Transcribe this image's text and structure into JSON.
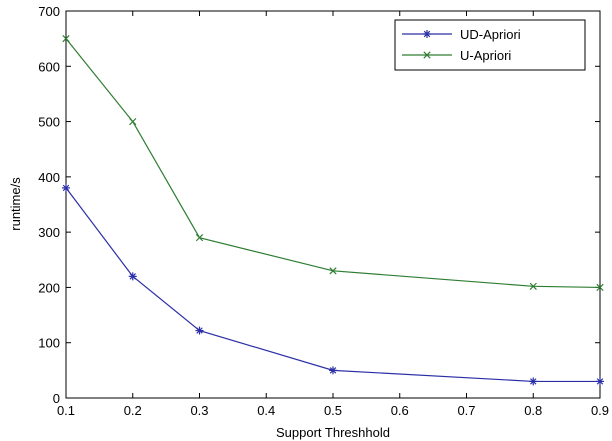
{
  "chart_data": {
    "type": "line",
    "title": "",
    "xlabel": "Support Threshhold",
    "ylabel": "runtime/s",
    "xlim": [
      0.1,
      0.9
    ],
    "ylim": [
      0,
      700
    ],
    "xticks": [
      0.1,
      0.2,
      0.3,
      0.4,
      0.5,
      0.6,
      0.7,
      0.8,
      0.9
    ],
    "xtick_labels": [
      "0.1",
      "0.2",
      "0.3",
      "0.4",
      "0.5",
      "0.6",
      "0.7",
      "0.8",
      "0.9"
    ],
    "yticks": [
      0,
      100,
      200,
      300,
      400,
      500,
      600,
      700
    ],
    "ytick_labels": [
      "0",
      "100",
      "200",
      "300",
      "400",
      "500",
      "600",
      "700"
    ],
    "grid": false,
    "legend_position": "top-right",
    "series": [
      {
        "name": "UD-Apriori",
        "color": "#2b2fa6",
        "marker": "asterisk",
        "x": [
          0.1,
          0.2,
          0.3,
          0.5,
          0.8,
          0.9
        ],
        "y": [
          380,
          220,
          122,
          50,
          30,
          30
        ]
      },
      {
        "name": "U-Apriori",
        "color": "#2e7d32",
        "marker": "x",
        "x": [
          0.1,
          0.2,
          0.3,
          0.5,
          0.8,
          0.9
        ],
        "y": [
          650,
          500,
          290,
          230,
          202,
          200
        ]
      }
    ]
  }
}
